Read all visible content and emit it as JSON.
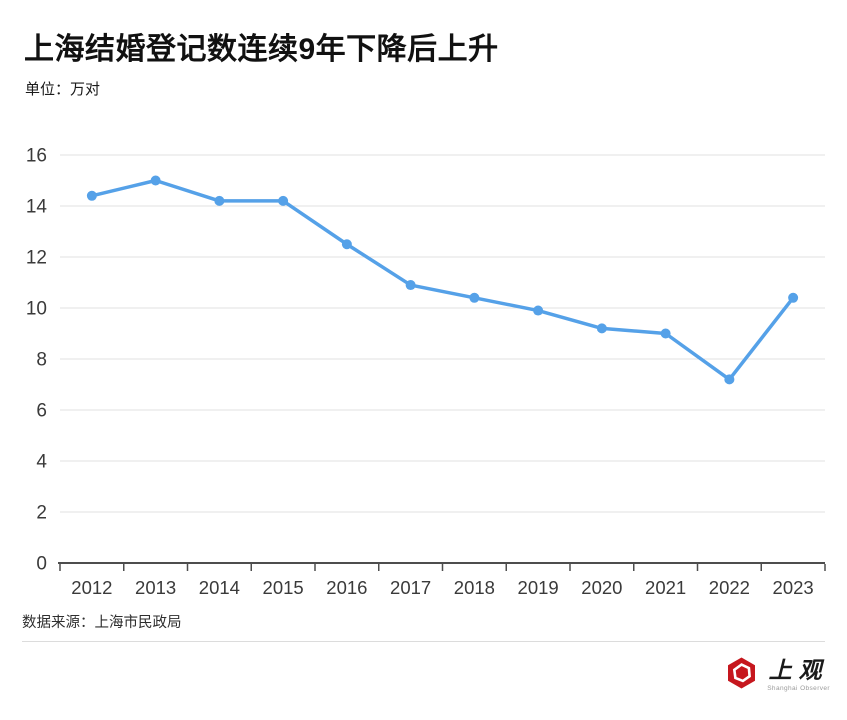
{
  "header": {
    "title": "上海结婚登记数连续9年下降后上升",
    "unit": "单位：万对"
  },
  "chart_data": {
    "type": "line",
    "title": "上海结婚登记数连续9年下降后上升",
    "unit_label": "单位：万对",
    "categories": [
      "2012",
      "2013",
      "2014",
      "2015",
      "2016",
      "2017",
      "2018",
      "2019",
      "2020",
      "2021",
      "2022",
      "2023"
    ],
    "series": [
      {
        "name": "结婚登记数",
        "values": [
          14.4,
          15.0,
          14.2,
          14.2,
          12.5,
          10.9,
          10.4,
          9.9,
          9.2,
          9.0,
          7.2,
          10.4
        ]
      }
    ],
    "ylim": [
      0,
      16
    ],
    "ytick_step": 2,
    "grid": "horizontal",
    "legend_position": "none",
    "colors": {
      "line": "#55a1e8",
      "marker": "#55a1e8",
      "grid": "#e2e2e2",
      "axis": "#4d4d4d",
      "tick_label": "#3a3a3a"
    }
  },
  "footer": {
    "source": "数据来源：上海市民政局",
    "logo_text": "上观",
    "logo_subtext": "Shanghai Observer",
    "logo_color": "#c6171e"
  }
}
